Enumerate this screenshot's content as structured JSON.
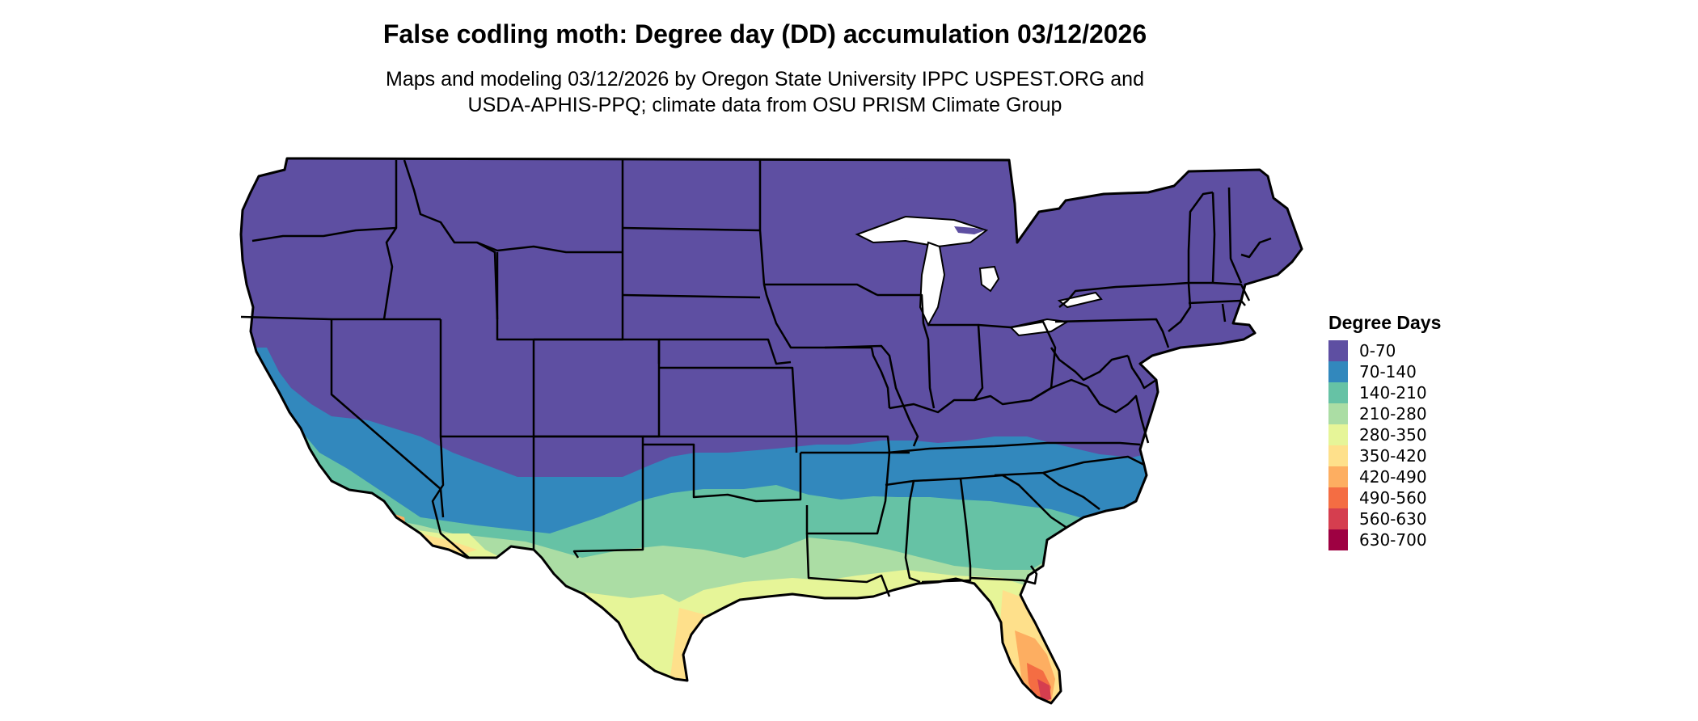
{
  "header": {
    "title": "False codling moth: Degree day (DD) accumulation 03/12/2026",
    "subtitle_line1": "Maps and modeling 03/12/2026 by Oregon State University IPPC USPEST.ORG and",
    "subtitle_line2": "USDA-APHIS-PPQ; climate data from OSU PRISM Climate Group"
  },
  "legend": {
    "title": "Degree Days",
    "items": [
      {
        "label": "0-70",
        "color": "#5E4FA2"
      },
      {
        "label": "70-140",
        "color": "#3288BD"
      },
      {
        "label": "140-210",
        "color": "#66C2A5"
      },
      {
        "label": "210-280",
        "color": "#ABDDA4"
      },
      {
        "label": "280-350",
        "color": "#E6F598"
      },
      {
        "label": "350-420",
        "color": "#FEE08B"
      },
      {
        "label": "420-490",
        "color": "#FDAE61"
      },
      {
        "label": "490-560",
        "color": "#F46D43"
      },
      {
        "label": "560-630",
        "color": "#D53E4F"
      },
      {
        "label": "630-700",
        "color": "#9E0142"
      }
    ]
  }
}
